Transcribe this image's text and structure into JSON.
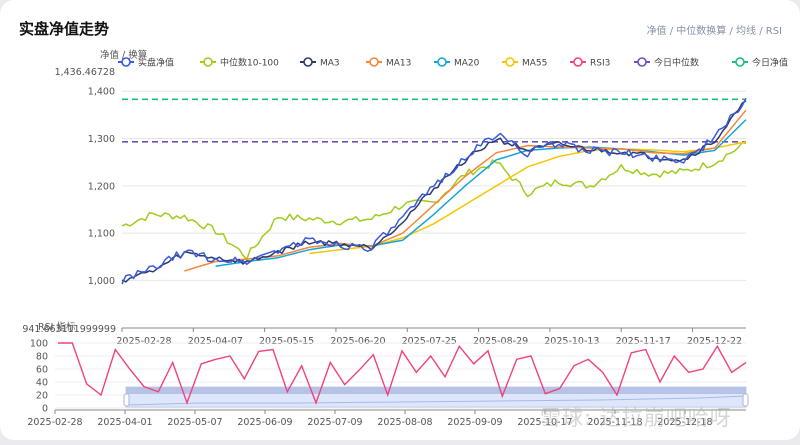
{
  "header": {
    "title": "实盘净值走势",
    "subtitle": "净值 / 中位数换算 / 均线 / RSI"
  },
  "watermark": "雪球: 达拉崩吧哈呀",
  "legend": [
    {
      "name": "实盘净值",
      "color": "#3a5bd9"
    },
    {
      "name": "中位数10-100",
      "color": "#a0cc1e"
    },
    {
      "name": "MA3",
      "color": "#2e3a6e"
    },
    {
      "name": "MA13",
      "color": "#f5873a"
    },
    {
      "name": "MA20",
      "color": "#14a5d8"
    },
    {
      "name": "MA55",
      "color": "#f7c600"
    },
    {
      "name": "RSI3",
      "color": "#f0437a"
    },
    {
      "name": "今日中位数",
      "color": "#6b4fbb"
    },
    {
      "name": "今日净值",
      "color": "#1dbb83"
    }
  ],
  "chart_data": [
    {
      "type": "line",
      "title": "实盘净值走势",
      "ylabel": "净值 / 换算",
      "ymax_label": "1,436.46728",
      "ylim": [
        941.663,
        1436.46728
      ],
      "yticks": [
        "1,000",
        "1,100",
        "1,200",
        "1,300",
        "1,400"
      ],
      "xticks": [
        "2025-02-28",
        "2025-04-07",
        "2025-05-15",
        "2025-06-20",
        "2025-07-25",
        "2025-08-29",
        "2025-10-13",
        "2025-11-17",
        "2025-12-22"
      ],
      "hlines": [
        {
          "name": "今日净值",
          "value": 1383,
          "color": "#1dbb83",
          "style": "dashed"
        },
        {
          "name": "今日中位数",
          "value": 1293,
          "color": "#6b4fbb",
          "style": "dashed"
        }
      ],
      "x": [
        0,
        0.05,
        0.1,
        0.15,
        0.2,
        0.25,
        0.3,
        0.35,
        0.4,
        0.45,
        0.5,
        0.55,
        0.6,
        0.65,
        0.7,
        0.75,
        0.8,
        0.85,
        0.9,
        0.95,
        1.0
      ],
      "series": [
        {
          "name": "实盘净值",
          "values": [
            1000,
            1025,
            1060,
            1045,
            1040,
            1065,
            1085,
            1075,
            1070,
            1130,
            1200,
            1260,
            1310,
            1270,
            1290,
            1275,
            1270,
            1260,
            1255,
            1300,
            1385
          ]
        },
        {
          "name": "中位数10-100",
          "values": [
            1115,
            1140,
            1135,
            1105,
            1050,
            1135,
            1130,
            1125,
            1130,
            1160,
            1165,
            1225,
            1250,
            1185,
            1210,
            1200,
            1240,
            1225,
            1230,
            1250,
            1290
          ]
        },
        {
          "name": "MA3",
          "values": [
            1000,
            1020,
            1058,
            1048,
            1038,
            1060,
            1082,
            1078,
            1070,
            1125,
            1195,
            1255,
            1300,
            1275,
            1288,
            1277,
            1272,
            1262,
            1255,
            1295,
            1380
          ]
        },
        {
          "name": "MA13",
          "values": [
            null,
            null,
            1020,
            1040,
            1045,
            1052,
            1070,
            1078,
            1072,
            1100,
            1160,
            1220,
            1270,
            1285,
            1282,
            1280,
            1278,
            1270,
            1268,
            1280,
            1360
          ]
        },
        {
          "name": "MA20",
          "values": [
            null,
            null,
            null,
            1030,
            1040,
            1048,
            1065,
            1075,
            1073,
            1085,
            1140,
            1200,
            1255,
            1275,
            1280,
            1282,
            1278,
            1272,
            1265,
            1275,
            1340
          ]
        },
        {
          "name": "MA55",
          "values": [
            null,
            null,
            null,
            null,
            null,
            null,
            1057,
            1065,
            1072,
            1090,
            1120,
            1160,
            1200,
            1240,
            1262,
            1275,
            1278,
            1276,
            1272,
            1280,
            1293
          ]
        }
      ]
    },
    {
      "type": "line",
      "title": "RSI 指标",
      "ylim": [
        0,
        100
      ],
      "yticks": [
        "0",
        "20",
        "40",
        "60",
        "80",
        "100"
      ],
      "xticks": [
        "2025-02-28",
        "2025-04-01",
        "2025-05-07",
        "2025-06-09",
        "2025-07-09",
        "2025-08-08",
        "2025-09-09",
        "2025-10-17",
        "2025-11-18",
        "2025-12-18"
      ],
      "series": [
        {
          "name": "RSI3",
          "values": [
            100,
            100,
            37,
            20,
            90,
            60,
            33,
            25,
            70,
            8,
            68,
            75,
            80,
            45,
            87,
            90,
            25,
            65,
            8,
            70,
            36,
            58,
            82,
            20,
            88,
            55,
            80,
            48,
            95,
            68,
            88,
            18,
            75,
            80,
            22,
            30,
            65,
            75,
            55,
            20,
            85,
            90,
            40,
            80,
            55,
            60,
            95,
            55,
            70
          ]
        }
      ]
    }
  ],
  "slider": {
    "start_label": "2025-04-01",
    "end_label": "2025-12-18"
  }
}
